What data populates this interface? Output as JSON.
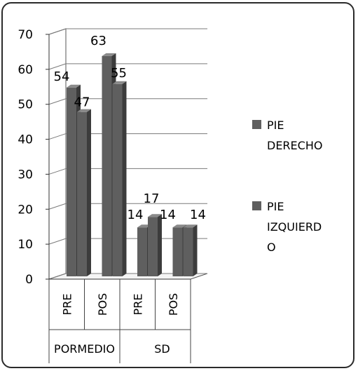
{
  "chart_data": {
    "type": "bar",
    "style": "3d-clustered-column",
    "ylim": [
      0,
      70
    ],
    "yticks": [
      0,
      10,
      20,
      30,
      40,
      50,
      60,
      70
    ],
    "categories": [
      "PRE",
      "POS",
      "PRE",
      "POS"
    ],
    "groups": [
      {
        "label": "PORMEDIO",
        "span": [
          0,
          1
        ]
      },
      {
        "label": "SD",
        "span": [
          2,
          3
        ]
      }
    ],
    "series": [
      {
        "name": "PIE DERECHO",
        "legend_lines": [
          "PIE",
          "DERECHO"
        ],
        "values": [
          54,
          63,
          14,
          14
        ]
      },
      {
        "name": "PIE IZQUIERDO",
        "legend_lines": [
          "PIE",
          "IZQUIERD",
          "O"
        ],
        "values": [
          47,
          55,
          17,
          14
        ]
      }
    ],
    "data_labels": [
      "54",
      "47",
      "63",
      "55",
      "14",
      "17",
      "14",
      "14"
    ],
    "legend_position": "right",
    "grid": true
  },
  "colors": {
    "bar_face": "#5f5f5f",
    "bar_side": "#3c3c3c",
    "bar_top": "#8a8a8a",
    "grid": "#7a7a7a",
    "wall": "#ffffff"
  }
}
